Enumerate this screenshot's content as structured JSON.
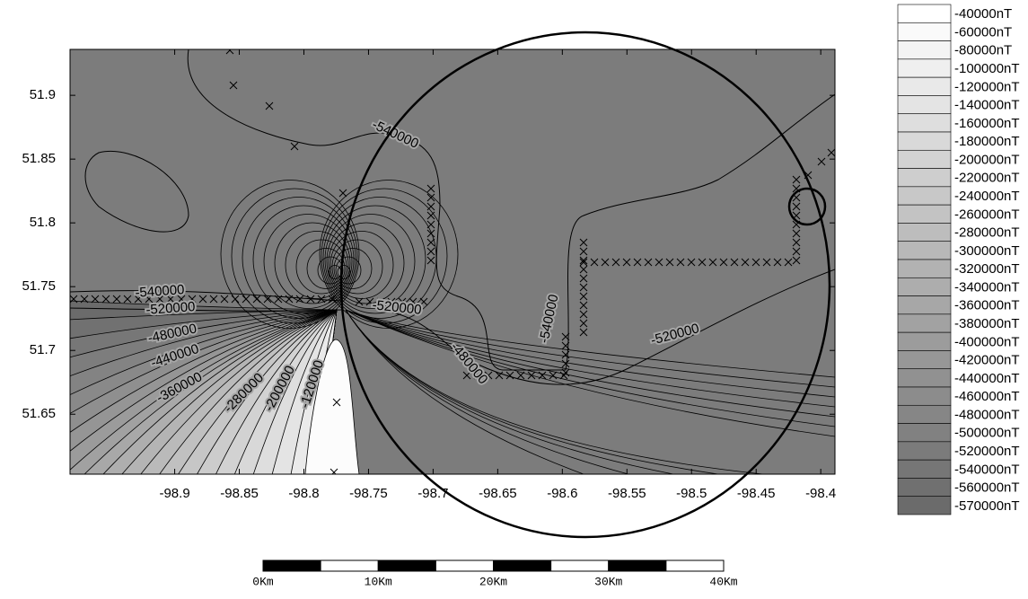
{
  "chart_data": {
    "type": "contour",
    "xlim": [
      -98.981,
      -98.389
    ],
    "ylim": [
      51.603,
      51.936
    ],
    "xticks": [
      -98.9,
      -98.85,
      -98.8,
      -98.75,
      -98.7,
      -98.65,
      -98.6,
      -98.55,
      -98.5,
      -98.45,
      -98.4
    ],
    "yticks": [
      51.65,
      51.7,
      51.75,
      51.8,
      51.85,
      51.9
    ],
    "contour_labels": [
      "-540000",
      "-540000",
      "-520000",
      "-480000",
      "-440000",
      "-360000",
      "-280000",
      "-200000",
      "-120000",
      "-520000",
      "-540000",
      "-480000",
      "-520000"
    ],
    "legend": [
      "-40000nT",
      "-60000nT",
      "-80000nT",
      "-100000nT",
      "-120000nT",
      "-140000nT",
      "-160000nT",
      "-180000nT",
      "-200000nT",
      "-220000nT",
      "-240000nT",
      "-260000nT",
      "-280000nT",
      "-300000nT",
      "-320000nT",
      "-340000nT",
      "-360000nT",
      "-380000nT",
      "-400000nT",
      "-420000nT",
      "-440000nT",
      "-460000nT",
      "-480000nT",
      "-500000nT",
      "-520000nT",
      "-540000nT",
      "-560000nT",
      "-570000nT"
    ],
    "color_range": [
      "#ffffff",
      "#6b6b6b"
    ],
    "scale_bar": [
      "0Km",
      "10Km",
      "20Km",
      "30Km",
      "40Km"
    ]
  }
}
